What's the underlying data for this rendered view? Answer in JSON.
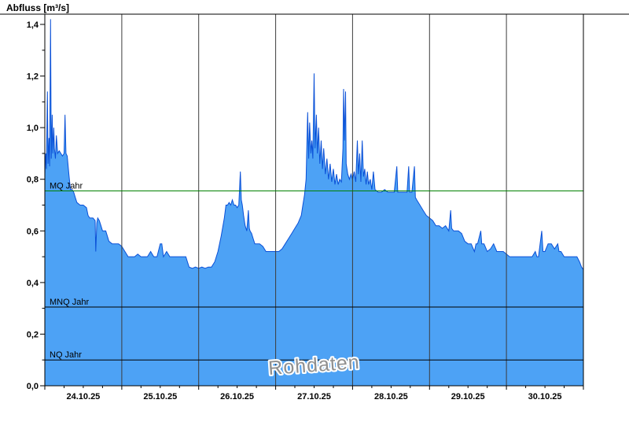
{
  "title": "Abfluss [m³/s]",
  "watermark": "Rohdaten",
  "axes": {
    "y_tick_values": [
      0,
      0.2,
      0.4,
      0.6,
      0.8,
      1.0,
      1.2,
      1.4
    ],
    "y_tick_labels": [
      "0,0",
      "0,2",
      "0,4",
      "0,6",
      "0,8",
      "1,0",
      "1,2",
      "1,4"
    ],
    "x_day_labels": [
      "24.10.25",
      "25.10.25",
      "26.10.25",
      "27.10.25",
      "28.10.25",
      "29.10.25",
      "30.10.25"
    ]
  },
  "colors": {
    "area_fill": "#4da2f5",
    "area_line": "#0a50d7",
    "grid_line": "#3c3c3c",
    "frame": "#000000",
    "ref_green": "#008000",
    "ref_black": "#000000",
    "watermark": "#8f8f8f",
    "background": "#ffffff"
  },
  "chart_data": {
    "type": "area",
    "title": "Abfluss [m³/s]",
    "ylabel": "Abfluss [m³/s]",
    "xlabel": "",
    "ylim": [
      0,
      1.4
    ],
    "grid": {
      "vertical_day_lines": true,
      "horizontal_lines": false
    },
    "legend": "none",
    "categories_days": [
      "24.10.25",
      "25.10.25",
      "26.10.25",
      "27.10.25",
      "28.10.25",
      "29.10.25",
      "30.10.25"
    ],
    "t_range": [
      0,
      168
    ],
    "t_unit": "hours, 0 = 24.10.25 00:00",
    "ref_lines": [
      {
        "label": "MQ Jahr",
        "value": 0.755,
        "color": "#008000"
      },
      {
        "label": "MNQ Jahr",
        "value": 0.305,
        "color": "#000000"
      },
      {
        "label": "NQ Jahr",
        "value": 0.1,
        "color": "#000000"
      }
    ],
    "series": [
      {
        "name": "Rohdaten",
        "unit": "m³/s",
        "points": [
          [
            0,
            0.82
          ],
          [
            0.3,
            0.9
          ],
          [
            0.5,
            0.84
          ],
          [
            0.8,
            1.14
          ],
          [
            1,
            0.86
          ],
          [
            1.3,
            0.96
          ],
          [
            1.5,
            0.85
          ],
          [
            1.8,
            1.42
          ],
          [
            2,
            0.88
          ],
          [
            2.3,
            1.05
          ],
          [
            2.5,
            0.9
          ],
          [
            2.8,
            1.0
          ],
          [
            3,
            0.92
          ],
          [
            3.3,
            0.88
          ],
          [
            3.6,
            0.97
          ],
          [
            4,
            0.9
          ],
          [
            4.5,
            0.91
          ],
          [
            5,
            0.9
          ],
          [
            5.5,
            0.89
          ],
          [
            6,
            0.9
          ],
          [
            6.3,
            1.05
          ],
          [
            6.6,
            0.9
          ],
          [
            7,
            0.89
          ],
          [
            7.5,
            0.82
          ],
          [
            8,
            0.76
          ],
          [
            8.5,
            0.76
          ],
          [
            9,
            0.75
          ],
          [
            9.5,
            0.73
          ],
          [
            10,
            0.71
          ],
          [
            11,
            0.7
          ],
          [
            12,
            0.7
          ],
          [
            13,
            0.69
          ],
          [
            13.5,
            0.66
          ],
          [
            14,
            0.65
          ],
          [
            15,
            0.65
          ],
          [
            15.7,
            0.64
          ],
          [
            15.9,
            0.52
          ],
          [
            16.2,
            0.63
          ],
          [
            16.5,
            0.65
          ],
          [
            17,
            0.64
          ],
          [
            17.5,
            0.62
          ],
          [
            18,
            0.6
          ],
          [
            19,
            0.6
          ],
          [
            19.5,
            0.58
          ],
          [
            20,
            0.56
          ],
          [
            21,
            0.55
          ],
          [
            22,
            0.55
          ],
          [
            23,
            0.55
          ],
          [
            24,
            0.54
          ],
          [
            25,
            0.52
          ],
          [
            26,
            0.5
          ],
          [
            27,
            0.5
          ],
          [
            28,
            0.5
          ],
          [
            29,
            0.51
          ],
          [
            30,
            0.5
          ],
          [
            31,
            0.5
          ],
          [
            32,
            0.5
          ],
          [
            33,
            0.52
          ],
          [
            34,
            0.5
          ],
          [
            35,
            0.5
          ],
          [
            36,
            0.55
          ],
          [
            36.5,
            0.55
          ],
          [
            37,
            0.5
          ],
          [
            38,
            0.52
          ],
          [
            39,
            0.5
          ],
          [
            40,
            0.5
          ],
          [
            41,
            0.5
          ],
          [
            42,
            0.5
          ],
          [
            43,
            0.5
          ],
          [
            44,
            0.5
          ],
          [
            44.5,
            0.48
          ],
          [
            45,
            0.46
          ],
          [
            46,
            0.455
          ],
          [
            47,
            0.46
          ],
          [
            48,
            0.455
          ],
          [
            49,
            0.46
          ],
          [
            50,
            0.455
          ],
          [
            51,
            0.46
          ],
          [
            52,
            0.46
          ],
          [
            53,
            0.48
          ],
          [
            54,
            0.52
          ],
          [
            55,
            0.58
          ],
          [
            56,
            0.65
          ],
          [
            56.5,
            0.7
          ],
          [
            57,
            0.7
          ],
          [
            57.5,
            0.71
          ],
          [
            58,
            0.7
          ],
          [
            58.5,
            0.72
          ],
          [
            59,
            0.7
          ],
          [
            59.5,
            0.7
          ],
          [
            60,
            0.69
          ],
          [
            60.5,
            0.7
          ],
          [
            61,
            0.83
          ],
          [
            61.3,
            0.72
          ],
          [
            61.6,
            0.7
          ],
          [
            62,
            0.66
          ],
          [
            62.5,
            0.62
          ],
          [
            63,
            0.6
          ],
          [
            63.5,
            0.68
          ],
          [
            63.8,
            0.61
          ],
          [
            64,
            0.6
          ],
          [
            64.5,
            0.59
          ],
          [
            65,
            0.57
          ],
          [
            65.5,
            0.55
          ],
          [
            66,
            0.55
          ],
          [
            67,
            0.55
          ],
          [
            68,
            0.54
          ],
          [
            69,
            0.52
          ],
          [
            70,
            0.52
          ],
          [
            71,
            0.52
          ],
          [
            72,
            0.52
          ],
          [
            73,
            0.52
          ],
          [
            74,
            0.53
          ],
          [
            75,
            0.55
          ],
          [
            76,
            0.57
          ],
          [
            77,
            0.59
          ],
          [
            78,
            0.61
          ],
          [
            79,
            0.63
          ],
          [
            80,
            0.66
          ],
          [
            80.5,
            0.7
          ],
          [
            81,
            0.74
          ],
          [
            81.5,
            0.8
          ],
          [
            82,
            1.06
          ],
          [
            82.3,
            0.88
          ],
          [
            82.6,
            1.02
          ],
          [
            83,
            0.9
          ],
          [
            83.3,
            0.95
          ],
          [
            83.6,
            0.88
          ],
          [
            84,
            1.21
          ],
          [
            84.3,
            0.92
          ],
          [
            84.7,
            1.05
          ],
          [
            85,
            0.9
          ],
          [
            85.4,
            1.0
          ],
          [
            85.8,
            0.86
          ],
          [
            86.2,
            0.95
          ],
          [
            86.6,
            0.84
          ],
          [
            87,
            0.92
          ],
          [
            87.5,
            0.82
          ],
          [
            88,
            0.88
          ],
          [
            88.5,
            0.8
          ],
          [
            89,
            0.86
          ],
          [
            89.5,
            0.79
          ],
          [
            90,
            0.84
          ],
          [
            90.5,
            0.78
          ],
          [
            91,
            0.82
          ],
          [
            91.5,
            0.78
          ],
          [
            92,
            0.8
          ],
          [
            92.5,
            0.79
          ],
          [
            93,
            0.92
          ],
          [
            93.2,
            1.15
          ],
          [
            93.5,
            0.95
          ],
          [
            93.8,
            1.14
          ],
          [
            94,
            0.86
          ],
          [
            94.5,
            0.82
          ],
          [
            95,
            0.8
          ],
          [
            95.5,
            0.82
          ],
          [
            96,
            0.8
          ],
          [
            96.5,
            0.83
          ],
          [
            97,
            0.79
          ],
          [
            97.5,
            0.95
          ],
          [
            97.8,
            0.82
          ],
          [
            98.2,
            0.9
          ],
          [
            98.6,
            0.79
          ],
          [
            99,
            0.95
          ],
          [
            99.4,
            0.81
          ],
          [
            99.8,
            0.84
          ],
          [
            100.2,
            0.78
          ],
          [
            100.6,
            0.83
          ],
          [
            101,
            0.78
          ],
          [
            101.5,
            0.8
          ],
          [
            102,
            0.76
          ],
          [
            102.5,
            0.83
          ],
          [
            103,
            0.76
          ],
          [
            104,
            0.75
          ],
          [
            105,
            0.75
          ],
          [
            106,
            0.76
          ],
          [
            107,
            0.75
          ],
          [
            108,
            0.75
          ],
          [
            109,
            0.75
          ],
          [
            109.8,
            0.85
          ],
          [
            110.1,
            0.75
          ],
          [
            111,
            0.75
          ],
          [
            112,
            0.75
          ],
          [
            113,
            0.75
          ],
          [
            113.5,
            0.85
          ],
          [
            113.8,
            0.75
          ],
          [
            114.5,
            0.75
          ],
          [
            115.3,
            0.85
          ],
          [
            115.6,
            0.73
          ],
          [
            116,
            0.72
          ],
          [
            117,
            0.7
          ],
          [
            118,
            0.68
          ],
          [
            119,
            0.66
          ],
          [
            120,
            0.65
          ],
          [
            121,
            0.64
          ],
          [
            122,
            0.62
          ],
          [
            123,
            0.62
          ],
          [
            124,
            0.61
          ],
          [
            125,
            0.62
          ],
          [
            126,
            0.6
          ],
          [
            126.6,
            0.68
          ],
          [
            126.9,
            0.61
          ],
          [
            127.5,
            0.6
          ],
          [
            128,
            0.6
          ],
          [
            129,
            0.6
          ],
          [
            130,
            0.59
          ],
          [
            131,
            0.56
          ],
          [
            132,
            0.55
          ],
          [
            133,
            0.55
          ],
          [
            134,
            0.52
          ],
          [
            134.5,
            0.55
          ],
          [
            135,
            0.55
          ],
          [
            136,
            0.6
          ],
          [
            136.3,
            0.55
          ],
          [
            137,
            0.55
          ],
          [
            138,
            0.52
          ],
          [
            139,
            0.53
          ],
          [
            140,
            0.55
          ],
          [
            141,
            0.52
          ],
          [
            142,
            0.52
          ],
          [
            143,
            0.52
          ],
          [
            144,
            0.51
          ],
          [
            145,
            0.5
          ],
          [
            146,
            0.5
          ],
          [
            147,
            0.5
          ],
          [
            148,
            0.5
          ],
          [
            149,
            0.5
          ],
          [
            150,
            0.5
          ],
          [
            151,
            0.5
          ],
          [
            152,
            0.5
          ],
          [
            153,
            0.52
          ],
          [
            153.5,
            0.5
          ],
          [
            154,
            0.5
          ],
          [
            155,
            0.6
          ],
          [
            155.4,
            0.52
          ],
          [
            156,
            0.52
          ],
          [
            157,
            0.55
          ],
          [
            158,
            0.55
          ],
          [
            159,
            0.53
          ],
          [
            160,
            0.55
          ],
          [
            160.4,
            0.52
          ],
          [
            161,
            0.52
          ],
          [
            162,
            0.5
          ],
          [
            163,
            0.5
          ],
          [
            164,
            0.5
          ],
          [
            165,
            0.5
          ],
          [
            166,
            0.5
          ],
          [
            166.8,
            0.48
          ],
          [
            167.4,
            0.46
          ],
          [
            168,
            0.45
          ]
        ]
      }
    ]
  }
}
